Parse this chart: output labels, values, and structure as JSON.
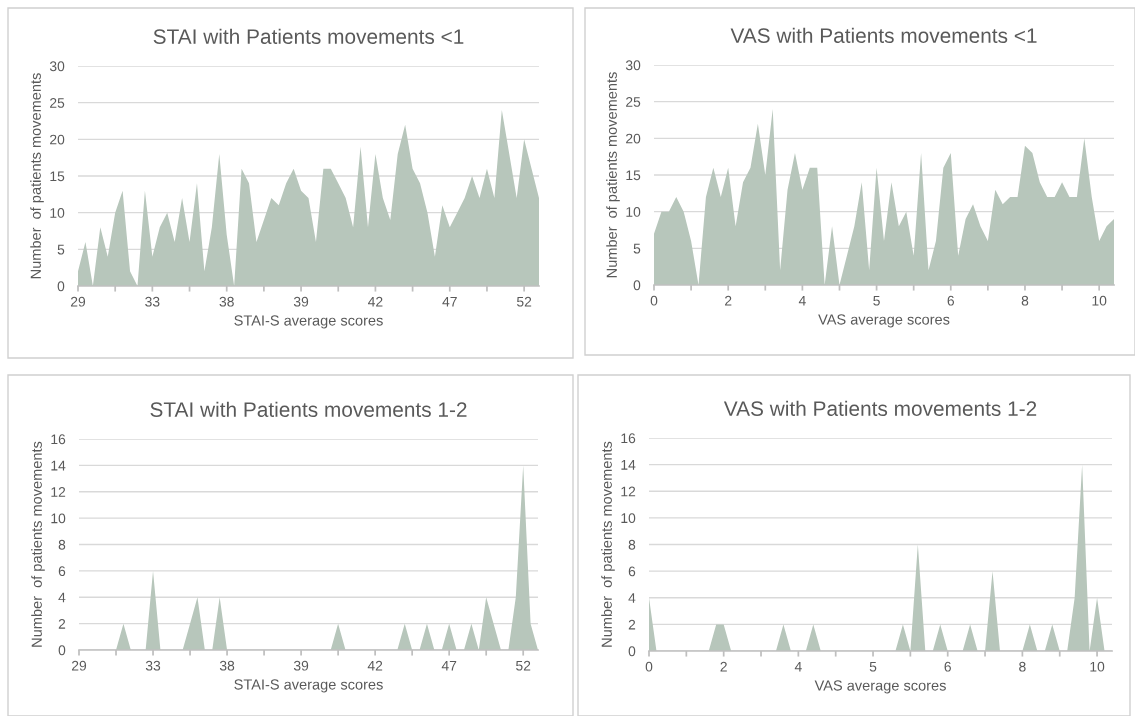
{
  "chart_data": [
    {
      "type": "area",
      "title": "STAI with Patients movements <1",
      "xlabel": "STAI-S average scores",
      "ylabel": "Number  of patients movements",
      "categories": [
        "29",
        null,
        null,
        null,
        null,
        null,
        null,
        null,
        null,
        null,
        "33",
        null,
        null,
        null,
        null,
        null,
        null,
        null,
        null,
        null,
        "38",
        null,
        null,
        null,
        null,
        null,
        null,
        null,
        null,
        null,
        "39",
        null,
        null,
        null,
        null,
        null,
        null,
        null,
        null,
        null,
        "42",
        null,
        null,
        null,
        null,
        null,
        null,
        null,
        null,
        null,
        "47",
        null,
        null,
        null,
        null,
        null,
        null,
        null,
        null,
        null,
        "52",
        null,
        null
      ],
      "series": [
        {
          "color": "#b7c6bb",
          "values": [
            2,
            6,
            0,
            8,
            4,
            10,
            13,
            2,
            0,
            13,
            4,
            8,
            10,
            6,
            12,
            6,
            14,
            2,
            8,
            18,
            7,
            0,
            16,
            14,
            6,
            9,
            12,
            11,
            14,
            16,
            13,
            12,
            6,
            16,
            16,
            14,
            12,
            8,
            19,
            8,
            18,
            12,
            9,
            18,
            22,
            16,
            14,
            10,
            4,
            11,
            8,
            10,
            12,
            15,
            12,
            16,
            12,
            24,
            18,
            12,
            20,
            16,
            12
          ]
        }
      ],
      "ylim": [
        0,
        30
      ],
      "yticks": [
        0,
        5,
        10,
        15,
        20,
        25,
        30
      ],
      "grid": "y"
    },
    {
      "type": "area",
      "title": "VAS with Patients movements <1",
      "xlabel": "VAS average scores",
      "ylabel": "Number  of patients movements",
      "categories": [
        "0",
        null,
        null,
        null,
        null,
        null,
        null,
        null,
        null,
        null,
        "2",
        null,
        null,
        null,
        null,
        null,
        null,
        null,
        null,
        null,
        "4",
        null,
        null,
        null,
        null,
        null,
        null,
        null,
        null,
        null,
        "5",
        null,
        null,
        null,
        null,
        null,
        null,
        null,
        null,
        null,
        "6",
        null,
        null,
        null,
        null,
        null,
        null,
        null,
        null,
        null,
        "8",
        null,
        null,
        null,
        null,
        null,
        null,
        null,
        null,
        null,
        "10",
        null,
        null
      ],
      "series": [
        {
          "color": "#b7c6bb",
          "values": [
            7,
            10,
            10,
            12,
            10,
            6,
            0,
            12,
            16,
            12,
            16,
            8,
            14,
            16,
            22,
            15,
            24,
            2,
            13,
            18,
            13,
            16,
            16,
            0,
            8,
            0,
            4,
            8,
            14,
            2,
            16,
            6,
            14,
            8,
            10,
            4,
            18,
            2,
            6,
            16,
            18,
            4,
            9,
            11,
            8,
            6,
            13,
            11,
            12,
            12,
            19,
            18,
            14,
            12,
            12,
            14,
            12,
            12,
            20,
            12,
            6,
            8,
            9
          ]
        }
      ],
      "ylim": [
        0,
        30
      ],
      "yticks": [
        0,
        5,
        10,
        15,
        20,
        25,
        30
      ],
      "grid": "y"
    },
    {
      "type": "area",
      "title": "STAI with Patients movements 1-2",
      "xlabel": "STAI-S average scores",
      "ylabel": "Number  of patients movements",
      "categories": [
        "29",
        null,
        null,
        null,
        null,
        null,
        null,
        null,
        null,
        null,
        "33",
        null,
        null,
        null,
        null,
        null,
        null,
        null,
        null,
        null,
        "38",
        null,
        null,
        null,
        null,
        null,
        null,
        null,
        null,
        null,
        "39",
        null,
        null,
        null,
        null,
        null,
        null,
        null,
        null,
        null,
        "42",
        null,
        null,
        null,
        null,
        null,
        null,
        null,
        null,
        null,
        "47",
        null,
        null,
        null,
        null,
        null,
        null,
        null,
        null,
        null,
        "52",
        null,
        null
      ],
      "series": [
        {
          "color": "#b7c6bb",
          "values": [
            0,
            0,
            0,
            0,
            0,
            0,
            2,
            0,
            0,
            0,
            6,
            0,
            0,
            0,
            0,
            2,
            4,
            0,
            0,
            4,
            0,
            0,
            0,
            0,
            0,
            0,
            0,
            0,
            0,
            0,
            0,
            0,
            0,
            0,
            0,
            2,
            0,
            0,
            0,
            0,
            0,
            0,
            0,
            0,
            2,
            0,
            0,
            2,
            0,
            0,
            2,
            0,
            0,
            2,
            0,
            4,
            2,
            0,
            0,
            4,
            14,
            2,
            0
          ]
        }
      ],
      "ylim": [
        0,
        16
      ],
      "yticks": [
        0,
        2,
        4,
        6,
        8,
        10,
        12,
        14,
        16
      ],
      "grid": "y"
    },
    {
      "type": "area",
      "title": "VAS with Patients movements 1-2",
      "xlabel": "VAS average scores",
      "ylabel": "Number  of patients movements",
      "categories": [
        "0",
        null,
        null,
        null,
        null,
        null,
        null,
        null,
        null,
        null,
        "2",
        null,
        null,
        null,
        null,
        null,
        null,
        null,
        null,
        null,
        "4",
        null,
        null,
        null,
        null,
        null,
        null,
        null,
        null,
        null,
        "5",
        null,
        null,
        null,
        null,
        null,
        null,
        null,
        null,
        null,
        "6",
        null,
        null,
        null,
        null,
        null,
        null,
        null,
        null,
        null,
        "8",
        null,
        null,
        null,
        null,
        null,
        null,
        null,
        null,
        null,
        "10",
        null,
        null
      ],
      "series": [
        {
          "color": "#b7c6bb",
          "values": [
            4,
            0,
            0,
            0,
            0,
            0,
            0,
            0,
            0,
            2,
            2,
            0,
            0,
            0,
            0,
            0,
            0,
            0,
            2,
            0,
            0,
            0,
            2,
            0,
            0,
            0,
            0,
            0,
            0,
            0,
            0,
            0,
            0,
            0,
            2,
            0,
            8,
            0,
            0,
            2,
            0,
            0,
            0,
            2,
            0,
            0,
            6,
            0,
            0,
            0,
            0,
            2,
            0,
            0,
            2,
            0,
            0,
            4,
            14,
            0,
            4,
            0,
            0
          ]
        }
      ],
      "ylim": [
        0,
        16
      ],
      "yticks": [
        0,
        2,
        4,
        6,
        8,
        10,
        12,
        14,
        16
      ],
      "grid": "y"
    }
  ]
}
